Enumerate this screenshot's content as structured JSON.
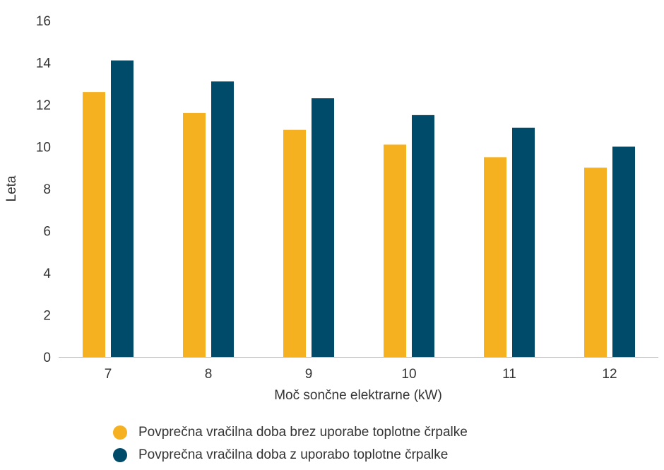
{
  "chart_data": {
    "type": "bar",
    "title": "",
    "xlabel": "Moč sončne elektrarne (kW)",
    "ylabel": "Leta",
    "ylim": [
      0,
      16
    ],
    "yticks": [
      0,
      2,
      4,
      6,
      8,
      10,
      12,
      14,
      16
    ],
    "grid": false,
    "legend_position": "bottom",
    "categories": [
      "7",
      "8",
      "9",
      "10",
      "11",
      "12"
    ],
    "series": [
      {
        "name": "Povprečna vračilna doba brez uporabe toplotne črpalke",
        "color": "#F5B120",
        "values": [
          12.6,
          11.6,
          10.8,
          10.1,
          9.5,
          9.0
        ]
      },
      {
        "name": "Povprečna vračilna doba z uporabo toplotne črpalke",
        "color": "#004A6A",
        "values": [
          14.1,
          13.1,
          12.3,
          11.5,
          10.9,
          10.0
        ]
      }
    ]
  }
}
